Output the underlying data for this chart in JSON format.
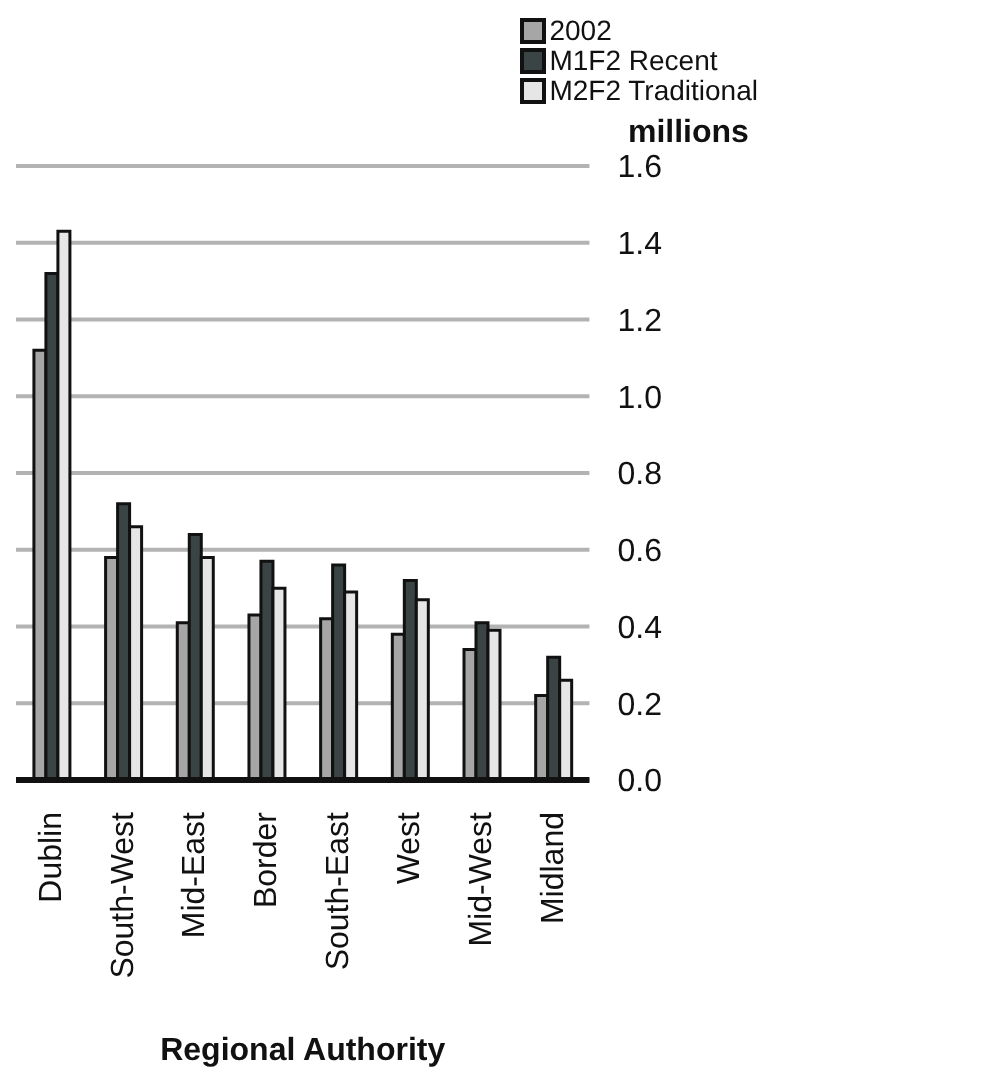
{
  "chart_data": {
    "type": "bar",
    "xlabel": "Regional Authority",
    "ylabel": "millions",
    "categories": [
      "Dublin",
      "South-West",
      "Mid-East",
      "Border",
      "South-East",
      "West",
      "Mid-West",
      "Midland"
    ],
    "series": [
      {
        "name": "2002",
        "color": "#a6a6a6",
        "values": [
          1.12,
          0.58,
          0.41,
          0.43,
          0.42,
          0.38,
          0.34,
          0.22
        ]
      },
      {
        "name": "M1F2 Recent",
        "color": "#3b4444",
        "values": [
          1.32,
          0.72,
          0.64,
          0.57,
          0.56,
          0.52,
          0.41,
          0.32
        ]
      },
      {
        "name": "M2F2 Traditional",
        "color": "#e6e6e6",
        "values": [
          1.43,
          0.66,
          0.58,
          0.5,
          0.49,
          0.47,
          0.39,
          0.26
        ]
      }
    ],
    "ylim": [
      0,
      1.6
    ],
    "yticks": [
      {
        "value": 0,
        "label": "0.0"
      },
      0.2,
      0.4,
      0.6,
      0.8,
      {
        "value": 1,
        "label": "1.0"
      },
      1.2,
      1.4,
      1.6
    ],
    "grid": "y",
    "legend": "top right"
  }
}
